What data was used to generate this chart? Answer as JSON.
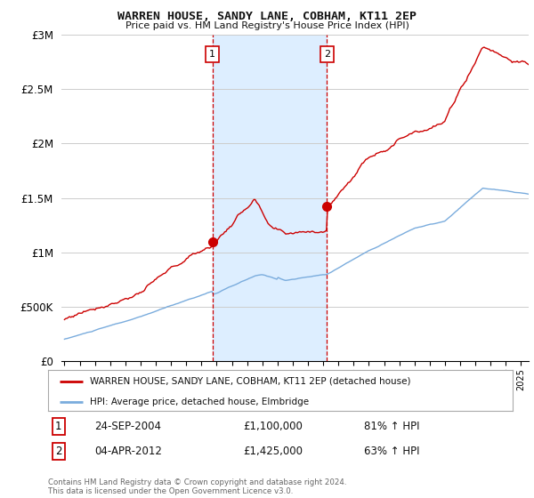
{
  "title": "WARREN HOUSE, SANDY LANE, COBHAM, KT11 2EP",
  "subtitle": "Price paid vs. HM Land Registry's House Price Index (HPI)",
  "ylabel_ticks": [
    "£0",
    "£500K",
    "£1M",
    "£1.5M",
    "£2M",
    "£2.5M",
    "£3M"
  ],
  "ytick_values": [
    0,
    500000,
    1000000,
    1500000,
    2000000,
    2500000,
    3000000
  ],
  "ylim": [
    0,
    3000000
  ],
  "xlim_start": 1994.8,
  "xlim_end": 2025.5,
  "sale1_x": 2004.73,
  "sale1_y": 1100000,
  "sale2_x": 2012.25,
  "sale2_y": 1425000,
  "red_line_color": "#cc0000",
  "blue_line_color": "#7aacdd",
  "shade_color": "#ddeeff",
  "vline_color": "#cc0000",
  "legend_line1": "WARREN HOUSE, SANDY LANE, COBHAM, KT11 2EP (detached house)",
  "legend_line2": "HPI: Average price, detached house, Elmbridge",
  "annotation1_date": "24-SEP-2004",
  "annotation1_price": "£1,100,000",
  "annotation1_hpi": "81% ↑ HPI",
  "annotation2_date": "04-APR-2012",
  "annotation2_price": "£1,425,000",
  "annotation2_hpi": "63% ↑ HPI",
  "footer": "Contains HM Land Registry data © Crown copyright and database right 2024.\nThis data is licensed under the Open Government Licence v3.0.",
  "bg_color": "#ffffff"
}
